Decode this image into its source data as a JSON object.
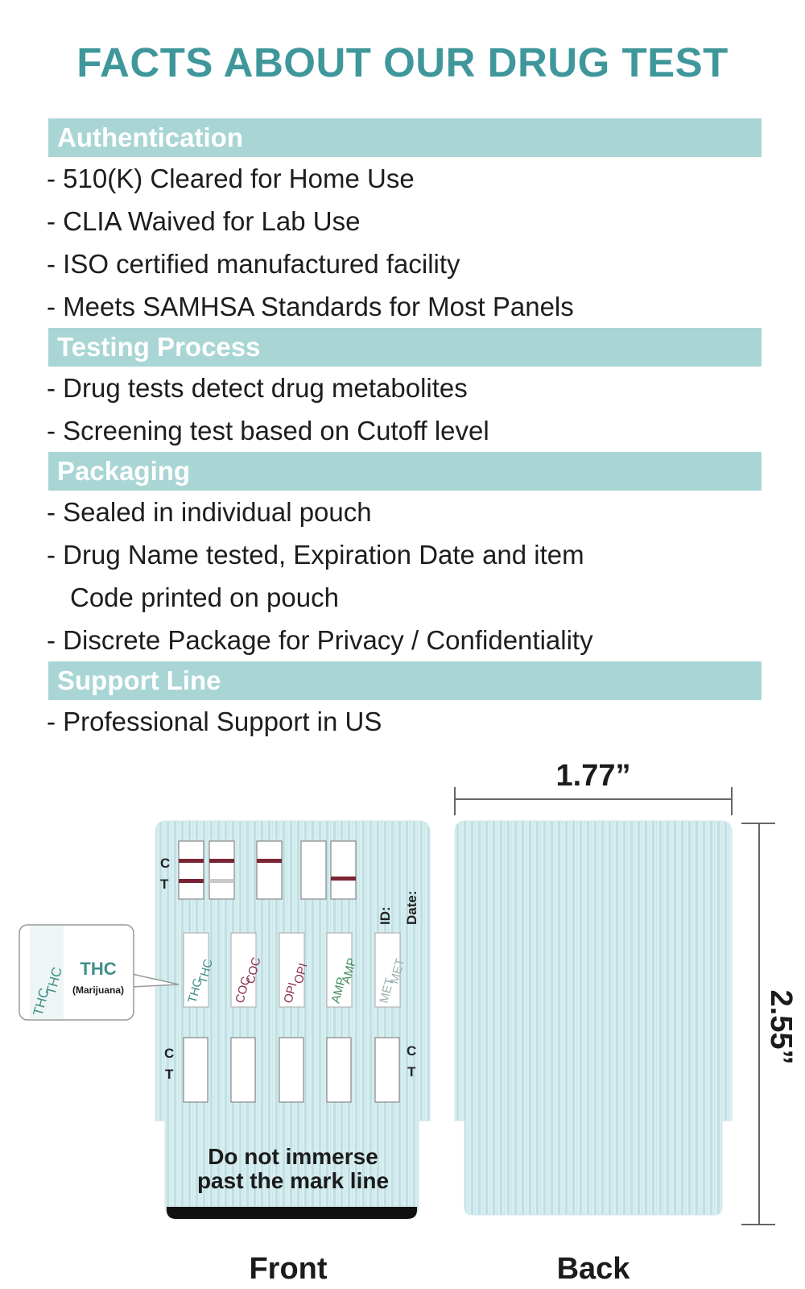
{
  "title": "FACTS ABOUT OUR DRUG TEST",
  "sections": [
    {
      "header": "Authentication",
      "items": [
        "- 510(K) Cleared for Home Use",
        "- CLIA Waived for Lab Use",
        "- ISO certified manufactured facility",
        "- Meets SAMHSA Standards for Most Panels"
      ]
    },
    {
      "header": "Testing Process",
      "items": [
        "- Drug tests detect drug metabolites",
        "- Screening test based on Cutoff level"
      ]
    },
    {
      "header": "Packaging",
      "items": [
        "- Sealed in individual pouch",
        "- Drug Name tested, Expiration Date and item",
        "Code printed on pouch",
        "- Discrete Package for Privacy / Confidentiality"
      ]
    },
    {
      "header": "Support Line",
      "items": [
        "- Professional Support in US"
      ]
    }
  ],
  "diagram": {
    "width_label": "1.77”",
    "height_label": "2.55”",
    "control_label": "C",
    "test_label": "T",
    "id_label": "ID:",
    "date_label": "Date:",
    "callout_drug": "THC",
    "callout_name": "(Marijuana)",
    "strip_codes": [
      "THC",
      "COC",
      "OPI",
      "AMP",
      "MET"
    ],
    "instruction_line1": "Do not immerse",
    "instruction_line2": "past the mark line",
    "front_label": "Front",
    "back_label": "Back"
  },
  "colors": {
    "title": "#3f979b",
    "header_bg": "#a9d5d5",
    "card_bg": "#d9eef0",
    "card_stripe": "#bfe0e4",
    "result_line": "#7a2535",
    "faint_line": "#c9c9c9",
    "thc": "#3f8f89",
    "coc": "#8a2e50",
    "opi": "#8a2e50",
    "amp": "#3f8f5a",
    "met": "#9aaeb0"
  }
}
